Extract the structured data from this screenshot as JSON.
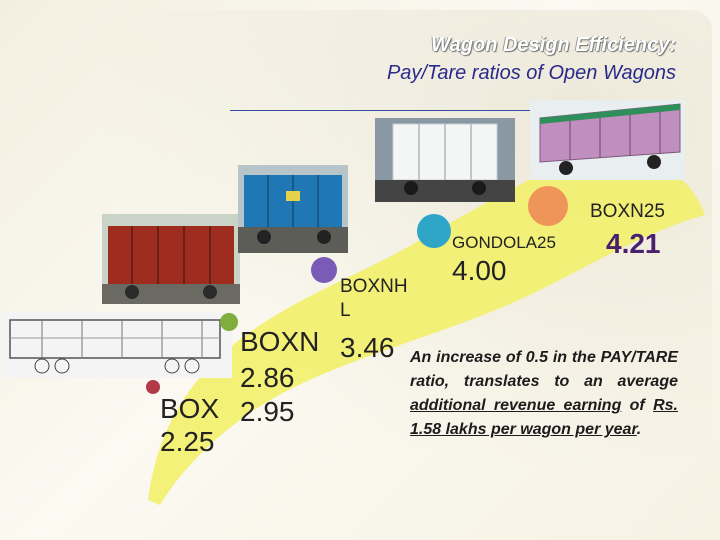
{
  "title": {
    "line1": "Wagon Design Efficiency:",
    "line2": "Pay/Tare ratios of Open Wagons"
  },
  "wagons": [
    {
      "name": "BOX",
      "ratio": "2.25",
      "dot_color": "#b23a48"
    },
    {
      "name": "BOXN",
      "ratio": "2.86",
      "dot_color": "#7fae3c"
    },
    {
      "name_line1": "BOXNH",
      "name_line2": "L",
      "ratio": "3.46",
      "dot_color": "#7a5bb5"
    },
    {
      "name": "GONDOLA25",
      "ratio": "4.00",
      "dot_color": "#2fa6c7"
    },
    {
      "name": "BOXN25",
      "ratio": "4.21",
      "dot_color": "#f0955a"
    }
  ],
  "box_value_2": "2.95",
  "note": {
    "text_prefix": "An increase of 0.5 in the PAY/TARE ratio, translates to an average ",
    "underlined_1": "additional revenue earning",
    "text_mid": " of ",
    "underlined_2": "Rs. 1.58 lakhs per wagon per year",
    "text_suffix": "."
  },
  "colors": {
    "curve_fill": "#f2f06a",
    "title_line2": "#2a2a8c",
    "accent_value": "#4a1f6e"
  }
}
